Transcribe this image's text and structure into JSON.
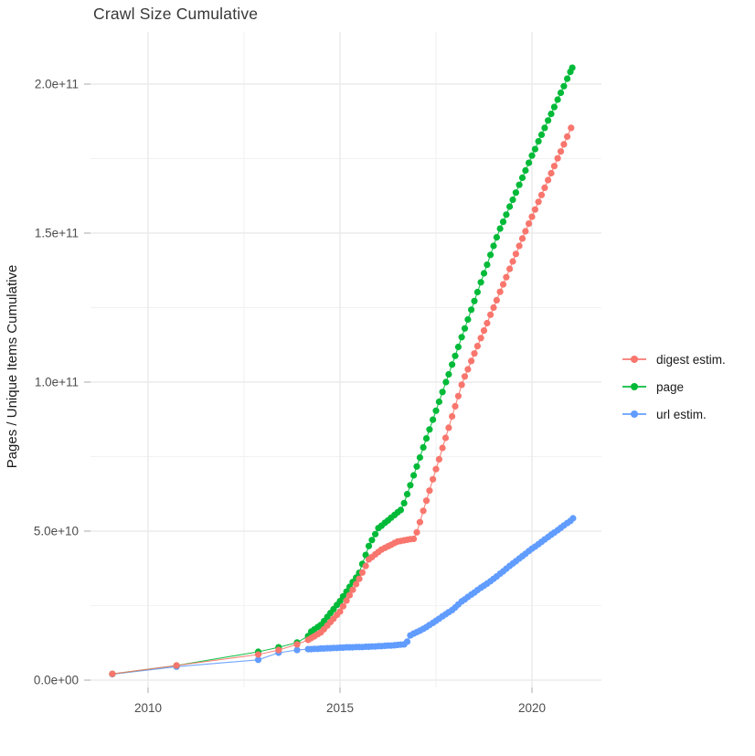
{
  "title": "Crawl Size Cumulative",
  "y_axis": {
    "label": "Pages / Unique Items Cumulative",
    "ticks": [
      {
        "label": "0.0e+00",
        "value_e9": 0
      },
      {
        "label": "5.0e+10",
        "value_e9": 50
      },
      {
        "label": "1.0e+11",
        "value_e9": 100
      },
      {
        "label": "1.5e+11",
        "value_e9": 150
      },
      {
        "label": "2.0e+11",
        "value_e9": 200
      }
    ],
    "minor_gridlines_e9": [
      25,
      75,
      125,
      175
    ]
  },
  "x_axis": {
    "ticks": [
      {
        "label": "2010",
        "value": 2010
      },
      {
        "label": "2015",
        "value": 2015
      },
      {
        "label": "2020",
        "value": 2020
      }
    ],
    "minor_gridlines": [
      2012.5,
      2017.5
    ]
  },
  "legend": [
    {
      "label": "digest estim.",
      "color": "#F8766D"
    },
    {
      "label": "page",
      "color": "#00BA38"
    },
    {
      "label": "url estim.",
      "color": "#619CFF"
    }
  ],
  "colors": {
    "digest_estim": "#F8766D",
    "page": "#00BA38",
    "url_estim": "#619CFF",
    "grid_major": "#e8e8e8",
    "grid_minor": "#f2f2f2",
    "tick_mark": "#b8b8b8",
    "tick_label": "#4d4d4d",
    "axis_title": "#1a1a1a"
  },
  "chart_data": {
    "type": "scatter",
    "title": "Crawl Size Cumulative",
    "xlabel": "",
    "ylabel": "Pages / Unique Items Cumulative",
    "x_unit": "year (crawl date)",
    "value_unit": "billions (1e9) of pages / unique items, cumulative",
    "x_range_shown": [
      2008.5,
      2021.8
    ],
    "y_range_shown_e9": [
      -7,
      217
    ],
    "grid": true,
    "legend_position": "right",
    "series": [
      {
        "name": "digest estim.",
        "color": "#F8766D",
        "points_year_billions": [
          [
            2009.07,
            2.1
          ],
          [
            2010.74,
            4.9
          ],
          [
            2012.87,
            8.6
          ],
          [
            2013.4,
            10.1
          ],
          [
            2013.88,
            12.0
          ],
          [
            2014.17,
            13.5
          ],
          [
            2014.25,
            14.1
          ],
          [
            2014.33,
            14.7
          ],
          [
            2014.42,
            15.4
          ],
          [
            2014.5,
            16.0
          ],
          [
            2014.58,
            17.1
          ],
          [
            2014.67,
            18.3
          ],
          [
            2014.75,
            19.5
          ],
          [
            2014.83,
            20.6
          ],
          [
            2014.92,
            21.9
          ],
          [
            2015.0,
            23.0
          ],
          [
            2015.08,
            24.8
          ],
          [
            2015.17,
            26.7
          ],
          [
            2015.25,
            28.5
          ],
          [
            2015.33,
            30.3
          ],
          [
            2015.42,
            32.2
          ],
          [
            2015.5,
            34.0
          ],
          [
            2015.58,
            36.1
          ],
          [
            2015.67,
            38.3
          ],
          [
            2015.75,
            40.5
          ],
          [
            2015.83,
            41.3
          ],
          [
            2015.92,
            42.2
          ],
          [
            2016.0,
            43.0
          ],
          [
            2016.08,
            43.8
          ],
          [
            2016.17,
            44.4
          ],
          [
            2016.25,
            44.9
          ],
          [
            2016.33,
            45.4
          ],
          [
            2016.42,
            46.0
          ],
          [
            2016.5,
            46.5
          ],
          [
            2016.58,
            46.7
          ],
          [
            2016.67,
            46.9
          ],
          [
            2016.75,
            47.1
          ],
          [
            2016.83,
            47.3
          ],
          [
            2016.92,
            47.4
          ],
          [
            2017.0,
            49.6
          ],
          [
            2017.08,
            53.0
          ],
          [
            2017.17,
            56.8
          ],
          [
            2017.25,
            60.2
          ],
          [
            2017.33,
            63.6
          ],
          [
            2017.42,
            67.4
          ],
          [
            2017.5,
            70.8
          ],
          [
            2017.58,
            74.1
          ],
          [
            2017.67,
            77.9
          ],
          [
            2017.75,
            81.3
          ],
          [
            2017.83,
            84.7
          ],
          [
            2017.92,
            88.5
          ],
          [
            2018.0,
            91.9
          ],
          [
            2018.08,
            95.3
          ],
          [
            2018.17,
            99.1
          ],
          [
            2018.25,
            101.9
          ],
          [
            2018.33,
            104.3
          ],
          [
            2018.42,
            107.1
          ],
          [
            2018.5,
            109.6
          ],
          [
            2018.58,
            112.1
          ],
          [
            2018.67,
            114.8
          ],
          [
            2018.75,
            117.3
          ],
          [
            2018.83,
            119.8
          ],
          [
            2018.92,
            122.6
          ],
          [
            2019.0,
            125.0
          ],
          [
            2019.08,
            127.5
          ],
          [
            2019.17,
            130.3
          ],
          [
            2019.25,
            132.8
          ],
          [
            2019.33,
            135.2
          ],
          [
            2019.42,
            138.0
          ],
          [
            2019.5,
            140.5
          ],
          [
            2019.58,
            143.0
          ],
          [
            2019.67,
            145.7
          ],
          [
            2019.75,
            148.2
          ],
          [
            2019.83,
            150.6
          ],
          [
            2019.92,
            153.2
          ],
          [
            2020.0,
            155.5
          ],
          [
            2020.08,
            157.9
          ],
          [
            2020.17,
            160.5
          ],
          [
            2020.25,
            162.8
          ],
          [
            2020.33,
            165.2
          ],
          [
            2020.42,
            167.8
          ],
          [
            2020.5,
            170.1
          ],
          [
            2020.58,
            172.5
          ],
          [
            2020.67,
            175.1
          ],
          [
            2020.75,
            177.4
          ],
          [
            2020.83,
            179.8
          ],
          [
            2020.92,
            182.4
          ],
          [
            2021.02,
            185.3
          ]
        ]
      },
      {
        "name": "page",
        "color": "#00BA38",
        "points_year_billions": [
          [
            2009.07,
            2.1
          ],
          [
            2010.74,
            4.9
          ],
          [
            2012.87,
            9.5
          ],
          [
            2013.4,
            11.0
          ],
          [
            2013.88,
            12.6
          ],
          [
            2014.17,
            14.8
          ],
          [
            2014.25,
            16.3
          ],
          [
            2014.33,
            17.0
          ],
          [
            2014.42,
            17.8
          ],
          [
            2014.5,
            18.5
          ],
          [
            2014.58,
            19.8
          ],
          [
            2014.67,
            21.2
          ],
          [
            2014.75,
            22.5
          ],
          [
            2014.83,
            23.8
          ],
          [
            2014.92,
            25.2
          ],
          [
            2015.0,
            26.5
          ],
          [
            2015.08,
            28.1
          ],
          [
            2015.17,
            29.7
          ],
          [
            2015.25,
            31.3
          ],
          [
            2015.33,
            32.9
          ],
          [
            2015.42,
            34.4
          ],
          [
            2015.5,
            36.0
          ],
          [
            2015.58,
            39.0
          ],
          [
            2015.67,
            42.0
          ],
          [
            2015.75,
            45.0
          ],
          [
            2015.83,
            47.0
          ],
          [
            2015.92,
            49.0
          ],
          [
            2016.0,
            51.0
          ],
          [
            2016.08,
            51.8
          ],
          [
            2016.17,
            52.8
          ],
          [
            2016.25,
            53.6
          ],
          [
            2016.33,
            54.5
          ],
          [
            2016.42,
            55.4
          ],
          [
            2016.5,
            56.3
          ],
          [
            2016.58,
            57.1
          ],
          [
            2016.67,
            59.4
          ],
          [
            2016.75,
            62.4
          ],
          [
            2016.83,
            65.4
          ],
          [
            2016.92,
            68.7
          ],
          [
            2017.0,
            71.7
          ],
          [
            2017.08,
            74.7
          ],
          [
            2017.17,
            78.1
          ],
          [
            2017.25,
            81.1
          ],
          [
            2017.33,
            84.1
          ],
          [
            2017.42,
            87.4
          ],
          [
            2017.5,
            90.4
          ],
          [
            2017.58,
            93.4
          ],
          [
            2017.67,
            96.7
          ],
          [
            2017.76,
            100.0
          ],
          [
            2017.83,
            102.6
          ],
          [
            2017.92,
            105.9
          ],
          [
            2018.0,
            108.8
          ],
          [
            2018.08,
            111.8
          ],
          [
            2018.17,
            115.1
          ],
          [
            2018.25,
            118.0
          ],
          [
            2018.33,
            121.0
          ],
          [
            2018.42,
            124.3
          ],
          [
            2018.5,
            127.2
          ],
          [
            2018.58,
            130.2
          ],
          [
            2018.67,
            133.5
          ],
          [
            2018.75,
            136.5
          ],
          [
            2018.83,
            139.4
          ],
          [
            2018.92,
            142.7
          ],
          [
            2019.0,
            145.7
          ],
          [
            2019.08,
            148.6
          ],
          [
            2019.17,
            151.5
          ],
          [
            2019.25,
            153.8
          ],
          [
            2019.33,
            156.2
          ],
          [
            2019.42,
            158.9
          ],
          [
            2019.5,
            161.2
          ],
          [
            2019.58,
            163.6
          ],
          [
            2019.67,
            166.2
          ],
          [
            2019.75,
            168.6
          ],
          [
            2019.83,
            171.0
          ],
          [
            2019.92,
            173.6
          ],
          [
            2020.0,
            176.0
          ],
          [
            2020.08,
            178.2
          ],
          [
            2020.17,
            180.8
          ],
          [
            2020.25,
            183.0
          ],
          [
            2020.33,
            185.3
          ],
          [
            2020.42,
            187.8
          ],
          [
            2020.5,
            190.0
          ],
          [
            2020.58,
            192.3
          ],
          [
            2020.67,
            194.8
          ],
          [
            2020.75,
            197.1
          ],
          [
            2020.83,
            199.3
          ],
          [
            2020.92,
            201.8
          ],
          [
            2021.0,
            204.1
          ],
          [
            2021.05,
            205.5
          ]
        ]
      },
      {
        "name": "url estim.",
        "color": "#619CFF",
        "points_year_billions": [
          [
            2009.07,
            2.0
          ],
          [
            2010.74,
            4.5
          ],
          [
            2012.87,
            6.8
          ],
          [
            2013.4,
            9.2
          ],
          [
            2013.88,
            10.1
          ],
          [
            2014.17,
            10.4
          ],
          [
            2014.25,
            10.4
          ],
          [
            2014.33,
            10.5
          ],
          [
            2014.42,
            10.5
          ],
          [
            2014.5,
            10.6
          ],
          [
            2014.58,
            10.6
          ],
          [
            2014.67,
            10.7
          ],
          [
            2014.75,
            10.7
          ],
          [
            2014.83,
            10.8
          ],
          [
            2014.92,
            10.8
          ],
          [
            2015.0,
            10.9
          ],
          [
            2015.08,
            10.9
          ],
          [
            2015.17,
            11.0
          ],
          [
            2015.25,
            11.0
          ],
          [
            2015.33,
            11.0
          ],
          [
            2015.42,
            11.1
          ],
          [
            2015.5,
            11.1
          ],
          [
            2015.58,
            11.1
          ],
          [
            2015.67,
            11.2
          ],
          [
            2015.75,
            11.2
          ],
          [
            2015.83,
            11.3
          ],
          [
            2015.92,
            11.3
          ],
          [
            2016.0,
            11.4
          ],
          [
            2016.08,
            11.4
          ],
          [
            2016.17,
            11.5
          ],
          [
            2016.25,
            11.6
          ],
          [
            2016.33,
            11.6
          ],
          [
            2016.42,
            11.7
          ],
          [
            2016.5,
            11.8
          ],
          [
            2016.58,
            11.9
          ],
          [
            2016.67,
            12.0
          ],
          [
            2016.75,
            12.9
          ],
          [
            2016.83,
            15.0
          ],
          [
            2016.92,
            15.6
          ],
          [
            2017.0,
            16.1
          ],
          [
            2017.08,
            16.6
          ],
          [
            2017.17,
            17.2
          ],
          [
            2017.25,
            17.8
          ],
          [
            2017.33,
            18.5
          ],
          [
            2017.42,
            19.2
          ],
          [
            2017.5,
            19.9
          ],
          [
            2017.58,
            20.6
          ],
          [
            2017.67,
            21.4
          ],
          [
            2017.75,
            22.1
          ],
          [
            2017.83,
            22.8
          ],
          [
            2017.92,
            23.5
          ],
          [
            2018.0,
            24.4
          ],
          [
            2018.08,
            25.4
          ],
          [
            2018.17,
            26.4
          ],
          [
            2018.25,
            27.1
          ],
          [
            2018.33,
            27.9
          ],
          [
            2018.42,
            28.7
          ],
          [
            2018.5,
            29.4
          ],
          [
            2018.58,
            30.2
          ],
          [
            2018.67,
            31.0
          ],
          [
            2018.75,
            31.7
          ],
          [
            2018.83,
            32.4
          ],
          [
            2018.92,
            33.2
          ],
          [
            2019.0,
            34.0
          ],
          [
            2019.08,
            34.8
          ],
          [
            2019.17,
            35.7
          ],
          [
            2019.25,
            36.5
          ],
          [
            2019.33,
            37.4
          ],
          [
            2019.42,
            38.3
          ],
          [
            2019.5,
            39.1
          ],
          [
            2019.58,
            39.9
          ],
          [
            2019.67,
            40.8
          ],
          [
            2019.75,
            41.6
          ],
          [
            2019.83,
            42.4
          ],
          [
            2019.92,
            43.3
          ],
          [
            2020.0,
            44.1
          ],
          [
            2020.08,
            44.8
          ],
          [
            2020.17,
            45.6
          ],
          [
            2020.25,
            46.4
          ],
          [
            2020.33,
            47.2
          ],
          [
            2020.42,
            48.0
          ],
          [
            2020.5,
            48.8
          ],
          [
            2020.58,
            49.5
          ],
          [
            2020.67,
            50.3
          ],
          [
            2020.75,
            51.1
          ],
          [
            2020.83,
            51.9
          ],
          [
            2020.92,
            52.7
          ],
          [
            2021.0,
            53.4
          ],
          [
            2021.07,
            54.3
          ]
        ]
      }
    ]
  }
}
